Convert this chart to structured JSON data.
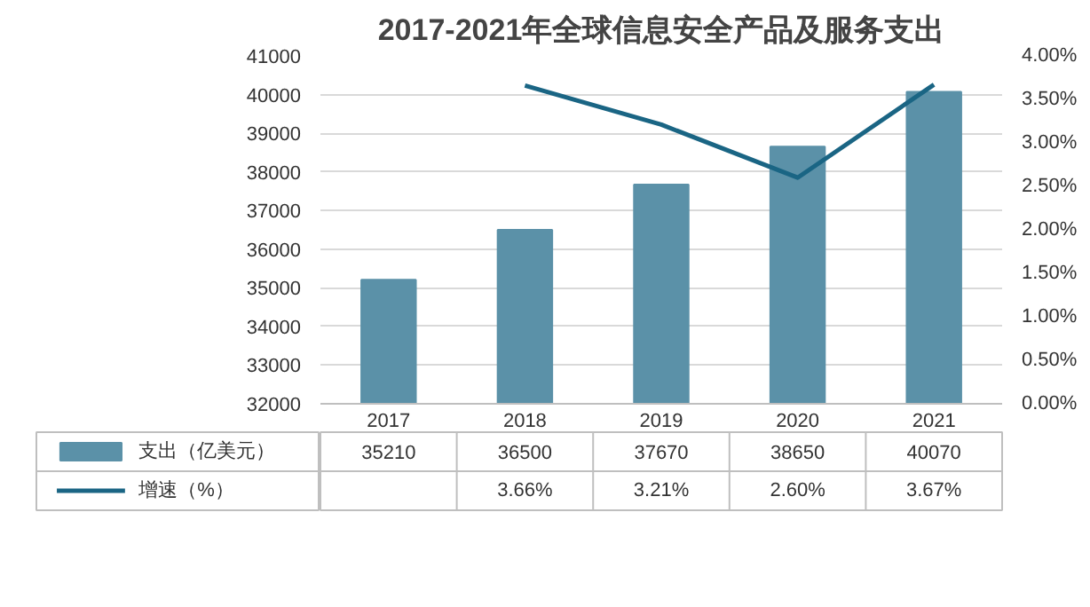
{
  "chart_data": {
    "type": "bar",
    "title": "2017-2021年全球信息安全产品及服务支出",
    "categories": [
      "2017",
      "2018",
      "2019",
      "2020",
      "2021"
    ],
    "series": [
      {
        "name": "支出（亿美元）",
        "type": "bar",
        "color": "#5b91a8",
        "values": [
          35210,
          36500,
          37670,
          38650,
          40070
        ],
        "value_labels": [
          "35210",
          "36500",
          "37670",
          "38650",
          "40070"
        ]
      },
      {
        "name": "增速（%）",
        "type": "line",
        "axis": "y2",
        "color": "#1a6584",
        "values": [
          null,
          3.66,
          3.21,
          2.6,
          3.67
        ],
        "value_labels": [
          null,
          "3.66%",
          "3.21%",
          "2.60%",
          "3.67%"
        ]
      }
    ],
    "ylim": [
      32000,
      41000
    ],
    "yticks": [
      32000,
      33000,
      34000,
      35000,
      36000,
      37000,
      38000,
      39000,
      40000,
      41000
    ],
    "y2lim": [
      0,
      4
    ],
    "y2ticks": [
      {
        "value": 0,
        "label": "0.00%"
      },
      {
        "value": 0.5,
        "label": "0.50%"
      },
      {
        "value": 1,
        "label": "1.00%"
      },
      {
        "value": 1.5,
        "label": "1.50%"
      },
      {
        "value": 2,
        "label": "2.00%"
      },
      {
        "value": 2.5,
        "label": "2.50%"
      },
      {
        "value": 3,
        "label": "3.00%"
      },
      {
        "value": 3.5,
        "label": "3.50%"
      },
      {
        "value": 4,
        "label": "4.00%"
      }
    ],
    "grid": "y",
    "legend": "bottom",
    "marker": "none",
    "line_style": "solid"
  }
}
